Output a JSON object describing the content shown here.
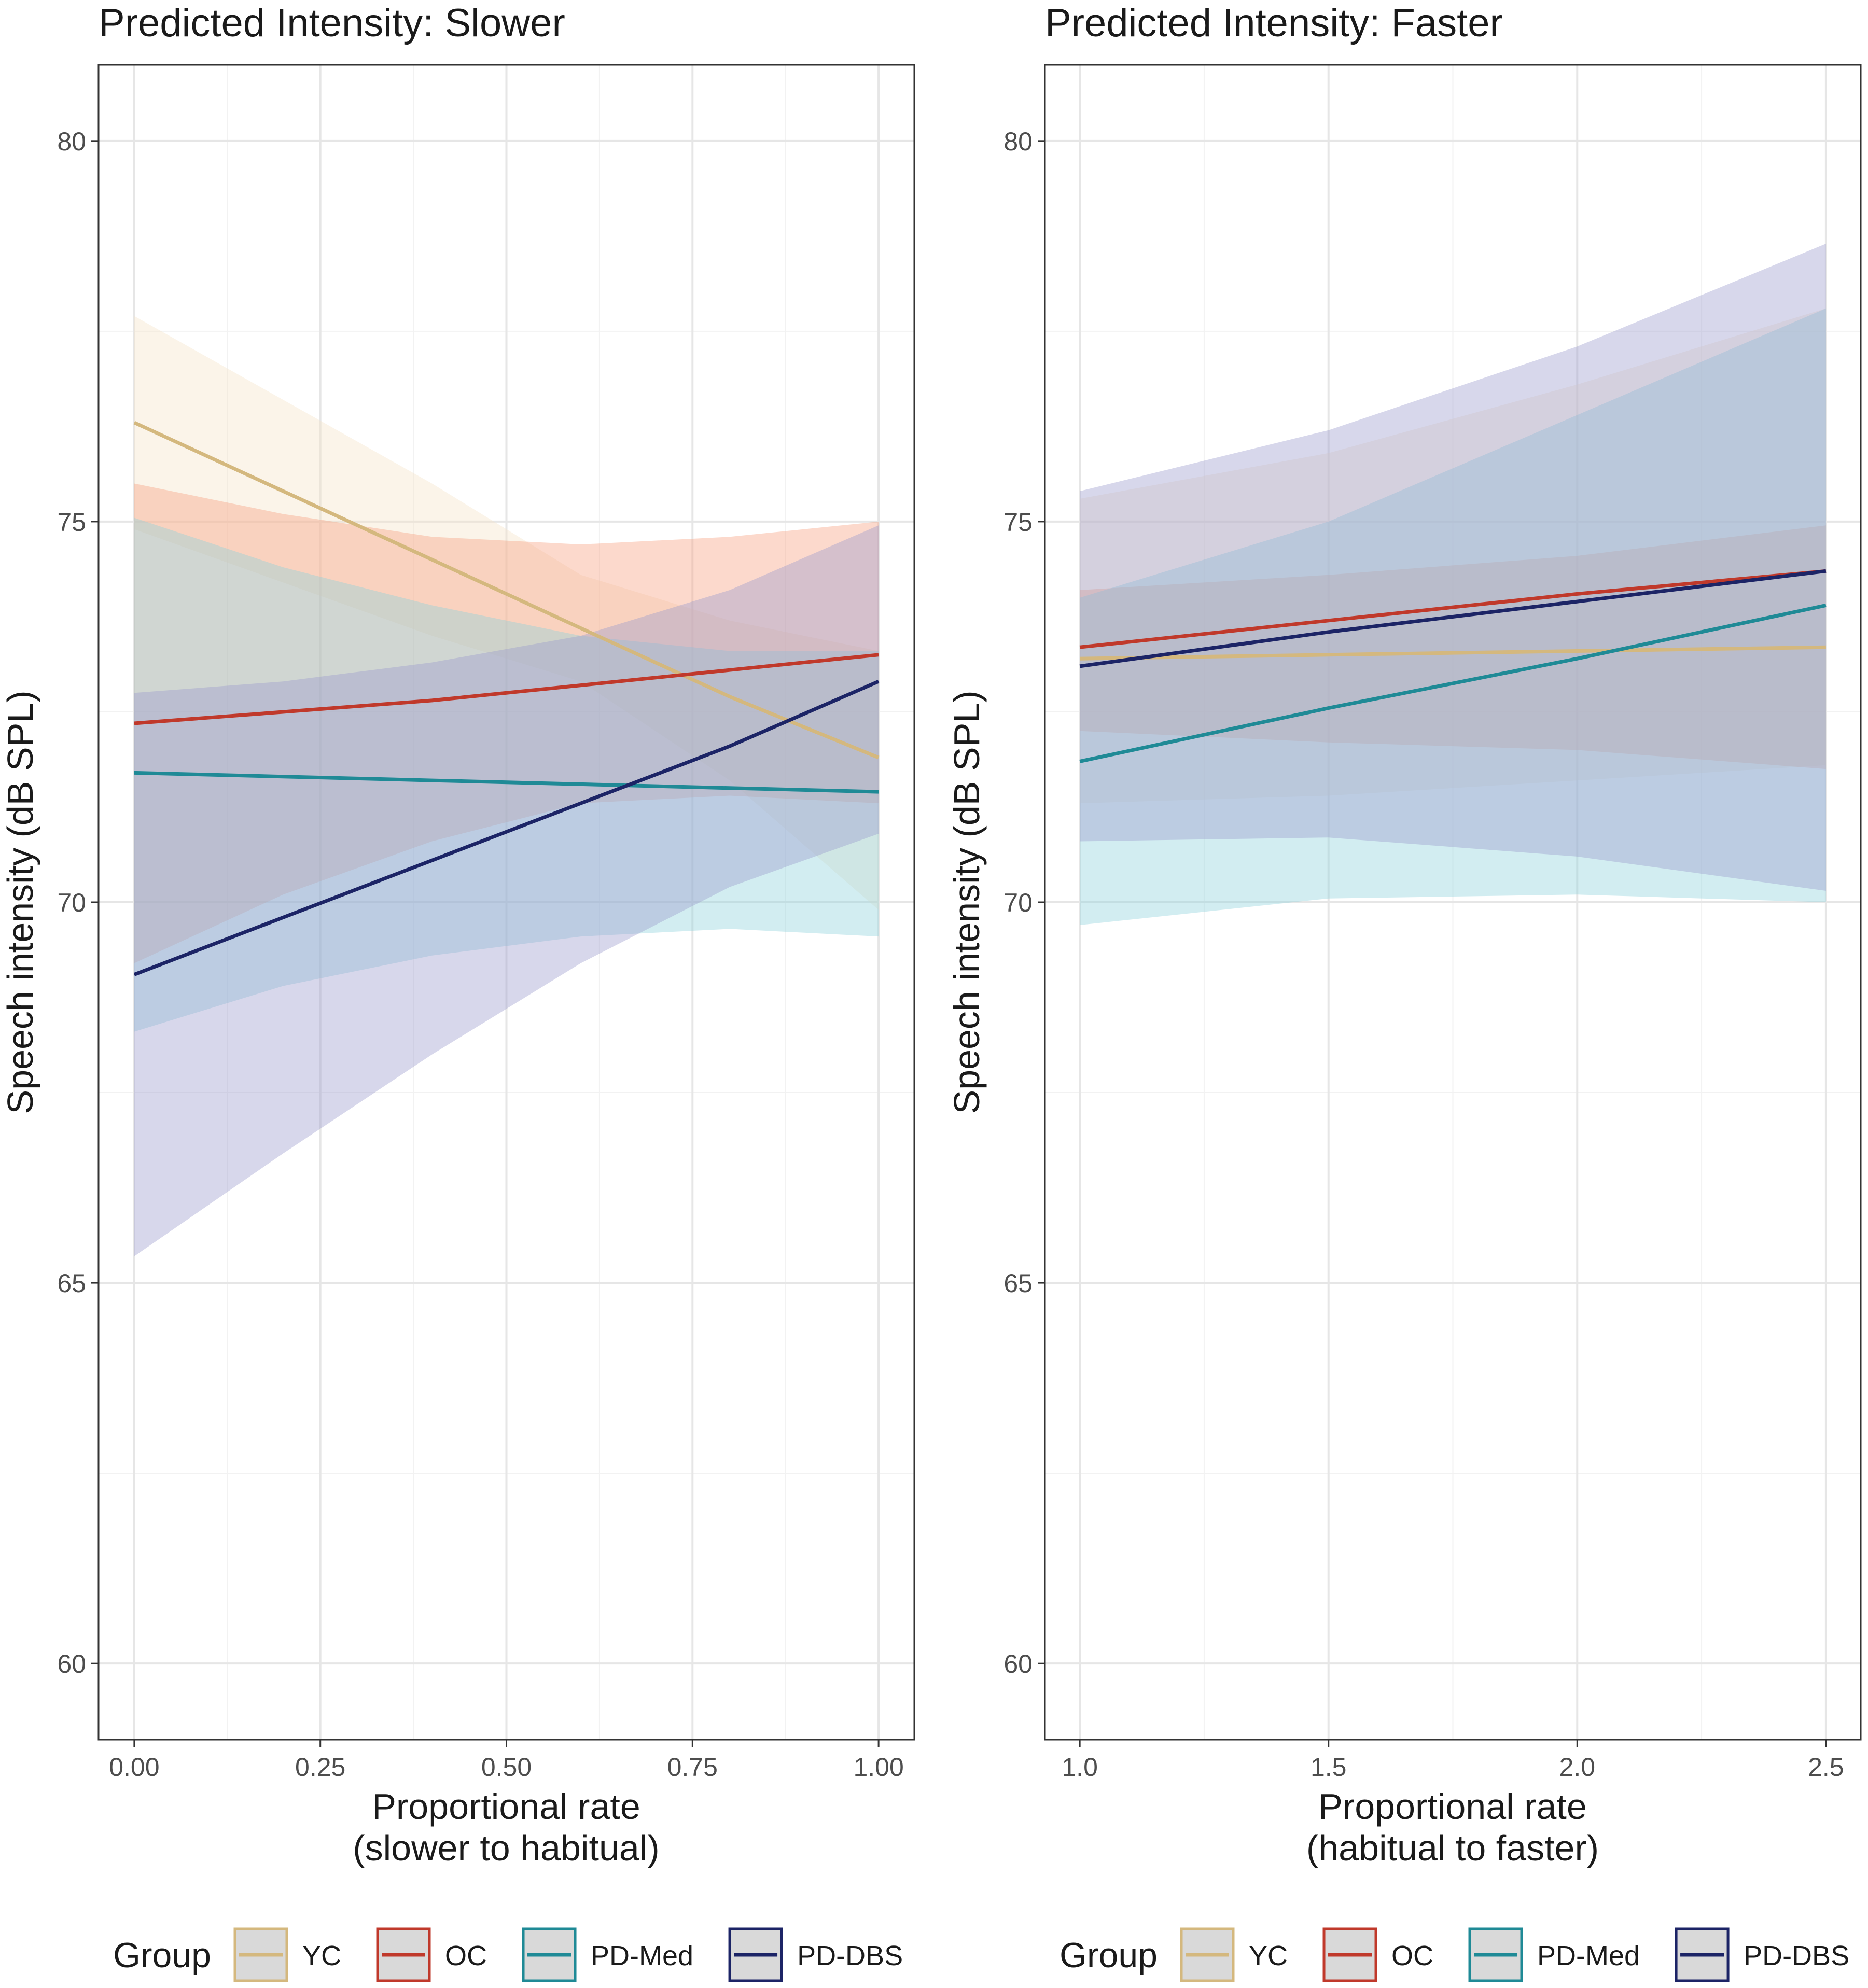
{
  "figure_title": "Predicted Intensity",
  "chart_data": [
    {
      "type": "line",
      "title": "Predicted Intensity: Slower",
      "xlabel_lines": [
        "Proportional rate",
        "(slower to habitual)"
      ],
      "ylabel": "Speech intensity (dB SPL)",
      "xlim": [
        -0.048,
        1.048
      ],
      "ylim": [
        59,
        81
      ],
      "x_major_ticks": [
        0,
        0.25,
        0.5,
        0.75,
        1.0
      ],
      "x_tick_labels": [
        "0.00",
        "0.25",
        "0.50",
        "0.75",
        "1.00"
      ],
      "x_minor_ticks": [
        0.125,
        0.375,
        0.625,
        0.875
      ],
      "y_major_ticks": [
        60,
        65,
        70,
        75,
        80
      ],
      "y_tick_labels": [
        "60",
        "65",
        "70",
        "75",
        "80"
      ],
      "y_minor_ticks": [
        62.5,
        67.5,
        72.5,
        77.5
      ],
      "series": [
        {
          "name": "YC",
          "x": [
            0,
            0.2,
            0.4,
            0.6,
            0.8,
            1.0
          ],
          "y": [
            76.3,
            75.4,
            74.5,
            73.6,
            72.7,
            71.9
          ],
          "lower": [
            74.9,
            74.2,
            73.5,
            72.9,
            71.6,
            69.9
          ],
          "upper": [
            77.7,
            76.6,
            75.5,
            74.3,
            73.7,
            73.3
          ]
        },
        {
          "name": "OC",
          "x": [
            0,
            0.2,
            0.4,
            0.6,
            0.8,
            1.0
          ],
          "y": [
            72.35,
            72.5,
            72.65,
            72.85,
            73.05,
            73.25
          ],
          "lower": [
            69.2,
            70.1,
            70.8,
            71.3,
            71.4,
            71.3
          ],
          "upper": [
            75.5,
            75.1,
            74.8,
            74.7,
            74.8,
            75.0
          ]
        },
        {
          "name": "PD-Med",
          "x": [
            0,
            0.2,
            0.4,
            0.6,
            0.8,
            1.0
          ],
          "y": [
            71.7,
            71.65,
            71.6,
            71.55,
            71.5,
            71.45
          ],
          "lower": [
            68.3,
            68.9,
            69.3,
            69.55,
            69.65,
            69.55
          ],
          "upper": [
            75.05,
            74.4,
            73.9,
            73.5,
            73.3,
            73.3
          ]
        },
        {
          "name": "PD-DBS",
          "x": [
            0,
            0.2,
            0.4,
            0.6,
            0.8,
            1.0
          ],
          "y": [
            69.05,
            69.8,
            70.55,
            71.3,
            72.05,
            72.9
          ],
          "lower": [
            65.35,
            66.7,
            68.0,
            69.2,
            70.2,
            70.9
          ],
          "upper": [
            72.75,
            72.9,
            73.15,
            73.5,
            74.1,
            74.95
          ]
        }
      ]
    },
    {
      "type": "line",
      "title": "Predicted Intensity: Faster",
      "xlabel_lines": [
        "Proportional rate",
        "(habitual to faster)"
      ],
      "ylabel": "Speech intensity (dB SPL)",
      "xlim": [
        0.93,
        2.57
      ],
      "ylim": [
        59,
        81
      ],
      "x_major_ticks": [
        1.0,
        1.5,
        2.0,
        2.5
      ],
      "x_tick_labels": [
        "1.0",
        "1.5",
        "2.0",
        "2.5"
      ],
      "x_minor_ticks": [
        1.25,
        1.75,
        2.25
      ],
      "y_major_ticks": [
        60,
        65,
        70,
        75,
        80
      ],
      "y_tick_labels": [
        "60",
        "65",
        "70",
        "75",
        "80"
      ],
      "y_minor_ticks": [
        62.5,
        67.5,
        72.5,
        77.5
      ],
      "series": [
        {
          "name": "YC",
          "x": [
            1.0,
            1.5,
            2.0,
            2.5
          ],
          "y": [
            73.2,
            73.25,
            73.3,
            73.35
          ],
          "lower": [
            71.3,
            71.4,
            71.6,
            71.8
          ],
          "upper": [
            75.3,
            75.9,
            76.8,
            77.8
          ]
        },
        {
          "name": "OC",
          "x": [
            1.0,
            1.5,
            2.0,
            2.5
          ],
          "y": [
            73.35,
            73.7,
            74.05,
            74.35
          ],
          "lower": [
            72.25,
            72.1,
            72.0,
            71.75
          ],
          "upper": [
            74.1,
            74.3,
            74.55,
            74.95
          ]
        },
        {
          "name": "PD-Med",
          "x": [
            1.0,
            1.5,
            2.0,
            2.5
          ],
          "y": [
            71.85,
            72.55,
            73.2,
            73.9
          ],
          "lower": [
            69.7,
            70.05,
            70.1,
            70.0
          ],
          "upper": [
            74.0,
            75.0,
            76.4,
            77.8
          ]
        },
        {
          "name": "PD-DBS",
          "x": [
            1.0,
            1.5,
            2.0,
            2.5
          ],
          "y": [
            73.1,
            73.55,
            73.95,
            74.35
          ],
          "lower": [
            70.8,
            70.85,
            70.6,
            70.15
          ],
          "upper": [
            75.4,
            76.2,
            77.3,
            78.65
          ]
        }
      ]
    }
  ],
  "legend": {
    "title": "Group",
    "entries": [
      {
        "label": "YC",
        "color": "#D4B87E",
        "fill": "#F4E3C9"
      },
      {
        "label": "OC",
        "color": "#C0392B",
        "fill": "#F7A080"
      },
      {
        "label": "PD-Med",
        "color": "#1F8A96",
        "fill": "#8FD3DC"
      },
      {
        "label": "PD-DBS",
        "color": "#1C2466",
        "fill": "#9A9CCC"
      }
    ]
  },
  "colors": {
    "panel_border": "#333333",
    "grid_major": "#e6e6e6",
    "grid_minor": "#f2f2f2",
    "legend_key_bg": "#d9d9d9"
  }
}
